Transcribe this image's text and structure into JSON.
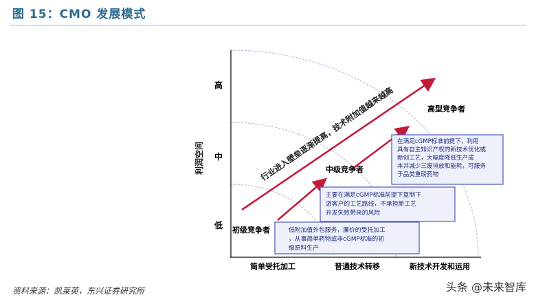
{
  "figure": {
    "title": "图 15：CMO 发展模式"
  },
  "axes": {
    "y_label": "利润空间",
    "y_levels": [
      "高",
      "中",
      "低"
    ],
    "x_levels": [
      "简单受托加工",
      "普通技术转移",
      "新技术开发和运用"
    ]
  },
  "trend_label": "行业进入壁垒逐渐提高，技术附加值越来越高",
  "tiers": [
    {
      "name": "初级竞争者",
      "desc": "低附加值外包服务，廉价的受托加工，从事简单药物或非cGMP标准的初级原料生产"
    },
    {
      "name": "中级竞争者",
      "desc": "主要在满足cGMP标准前提下复制下游客户的工艺路线，不承担新工艺开发失败带来的风险"
    },
    {
      "name": "高型竞争者",
      "desc": "在满足cGMP标准前提下，利用具有自主知识产权的新技术优化或新创工艺，大幅度降低生产成本并减少三废排放和能耗，可服务于品类重磅药物"
    }
  ],
  "source": "资料来源：凯莱英，东兴证券研究所",
  "watermark": "头条 @未来智库",
  "colors": {
    "title": "#2d6a8f",
    "arrow": "#c41a3a",
    "box_fill": "#eef0fb",
    "box_border": "#4d57b8",
    "arc": "#b8c4dc"
  }
}
